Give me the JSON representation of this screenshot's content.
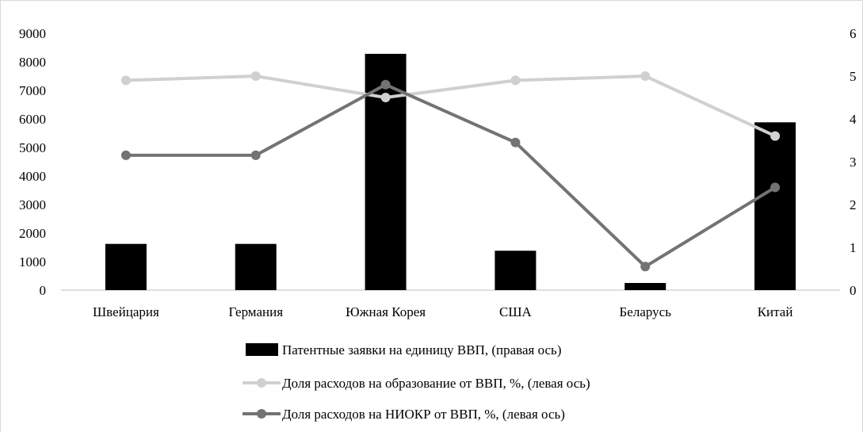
{
  "chart_data": {
    "type": "bar+line",
    "title": "",
    "categories": [
      "Швейцария",
      "Германия",
      "Южная Корея",
      "США",
      "Беларусь",
      "Китай"
    ],
    "left_axis": {
      "min": 0,
      "max": 9000,
      "step": 1000,
      "ticks": [
        "0",
        "1000",
        "2000",
        "3000",
        "4000",
        "5000",
        "6000",
        "7000",
        "8000",
        "9000"
      ]
    },
    "right_axis": {
      "min": 0,
      "max": 6,
      "step": 1,
      "ticks": [
        "0",
        "1",
        "2",
        "3",
        "4",
        "5",
        "6"
      ]
    },
    "series": [
      {
        "name": "Патентные заявки на единицу ВВП, (правая ось)",
        "type": "bar",
        "axis": "left",
        "values": [
          1620,
          1620,
          8280,
          1380,
          250,
          5880
        ],
        "color": "#000000"
      },
      {
        "name": "Доля расходов на образование от ВВП, %, (левая ось)",
        "type": "line",
        "axis": "right",
        "values": [
          4.9,
          5.0,
          4.5,
          4.9,
          5.0,
          3.6
        ],
        "color": "#d0d0d0"
      },
      {
        "name": "Доля расходов на НИОКР от ВВП, %, (левая ось)",
        "type": "line",
        "axis": "right",
        "values": [
          3.15,
          3.15,
          4.8,
          3.45,
          0.55,
          2.4
        ],
        "color": "#737373"
      }
    ],
    "grid": false,
    "legend_position": "bottom"
  }
}
